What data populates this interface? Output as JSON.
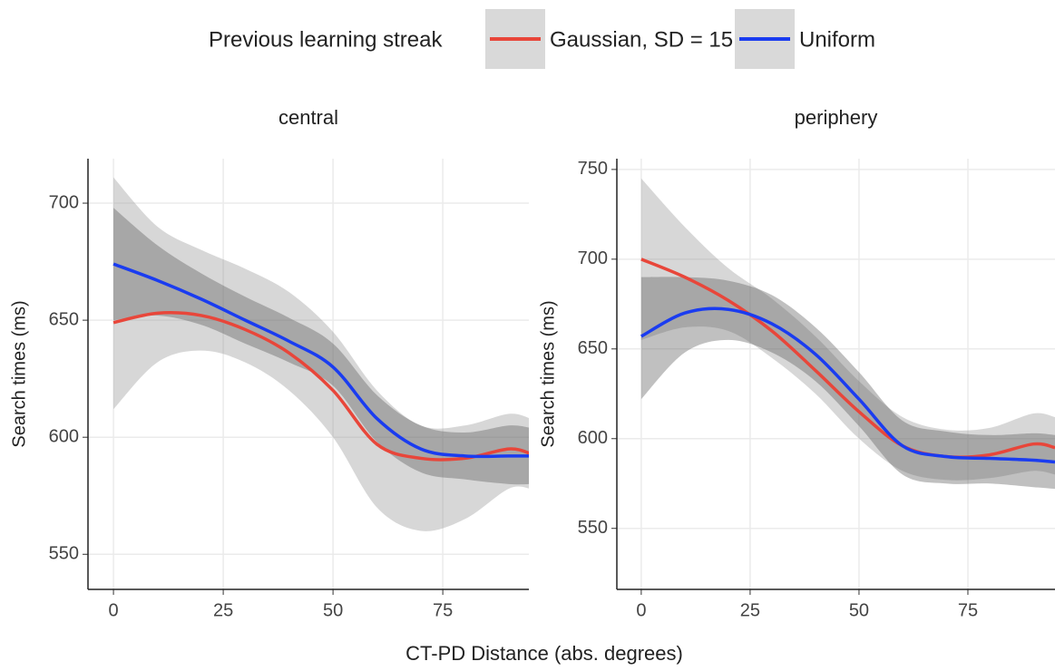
{
  "legend": {
    "title": "Previous learning streak",
    "series": [
      {
        "name": "Gaussian, SD = 15",
        "color": "#e8463a",
        "band_color": "rgba(150,150,150,0.38)"
      },
      {
        "name": "Uniform",
        "color": "#1a3cf0",
        "band_color": "rgba(90,90,90,0.38)"
      }
    ]
  },
  "x_label": "CT-PD Distance (abs. degrees)",
  "chart_data": [
    {
      "type": "line",
      "title": "central",
      "y_label": "Search times (ms)",
      "x": [
        0,
        10,
        20,
        30,
        40,
        50,
        60,
        70,
        80,
        90,
        95
      ],
      "xlim": [
        -5.8,
        94.6
      ],
      "xticks": [
        0,
        25,
        50,
        75
      ],
      "ylim": [
        535,
        719
      ],
      "yticks": [
        550,
        600,
        650,
        700
      ],
      "grid": true,
      "series": [
        {
          "values": [
            649,
            653,
            652,
            646,
            636,
            620,
            597,
            591,
            591,
            595,
            593
          ],
          "lower": [
            612,
            632,
            637,
            632,
            620,
            600,
            570,
            560,
            565,
            578,
            578
          ],
          "upper": [
            711,
            690,
            680,
            672,
            662,
            645,
            620,
            605,
            605,
            610,
            608
          ]
        },
        {
          "values": [
            674,
            667,
            659,
            650,
            641,
            630,
            608,
            595,
            592,
            592,
            592
          ],
          "lower": [
            650,
            652,
            648,
            640,
            632,
            622,
            598,
            585,
            582,
            580,
            580
          ],
          "upper": [
            698,
            682,
            670,
            660,
            651,
            640,
            618,
            605,
            602,
            605,
            604
          ]
        }
      ]
    },
    {
      "type": "line",
      "title": "periphery",
      "y_label": "Search times (ms)",
      "x": [
        0,
        10,
        20,
        30,
        40,
        50,
        60,
        70,
        80,
        90,
        95
      ],
      "xlim": [
        -5.6,
        95
      ],
      "xticks": [
        0,
        25,
        50,
        75
      ],
      "ylim": [
        516,
        756
      ],
      "yticks": [
        550,
        600,
        650,
        700,
        750
      ],
      "grid": true,
      "series": [
        {
          "values": [
            700,
            690,
            677,
            660,
            638,
            615,
            596,
            590,
            591,
            597,
            595
          ],
          "lower": [
            655,
            662,
            660,
            645,
            625,
            600,
            582,
            577,
            578,
            582,
            580
          ],
          "upper": [
            745,
            718,
            695,
            678,
            657,
            632,
            612,
            605,
            606,
            614,
            612
          ]
        },
        {
          "values": [
            657,
            670,
            672,
            664,
            647,
            622,
            596,
            590,
            589,
            588,
            587
          ],
          "lower": [
            622,
            648,
            655,
            648,
            632,
            607,
            580,
            575,
            575,
            573,
            572
          ],
          "upper": [
            690,
            690,
            688,
            680,
            662,
            637,
            610,
            604,
            602,
            603,
            602
          ]
        }
      ]
    }
  ]
}
